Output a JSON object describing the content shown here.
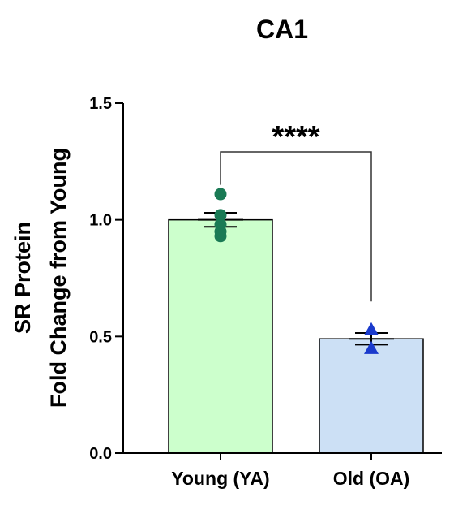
{
  "chart_data": {
    "type": "bar",
    "title": "CA1",
    "ylabel_lines": [
      "SR Protein",
      "Fold Change from Young"
    ],
    "xlabel": "",
    "ylim": [
      0,
      1.5
    ],
    "yticks": [
      0.0,
      0.5,
      1.0,
      1.5
    ],
    "ytick_labels": [
      "0.0",
      "0.5",
      "1.0",
      "1.5"
    ],
    "categories": [
      "Young (YA)",
      "Old (OA)"
    ],
    "values": [
      1.0,
      0.49
    ],
    "sem": [
      0.03,
      0.025
    ],
    "bar_fill_colors": [
      "#ccffcc",
      "#cce0f5"
    ],
    "points": [
      {
        "category": "Young (YA)",
        "marker": "circle",
        "color": "#1a7a55",
        "y": [
          1.11,
          1.02,
          0.98,
          0.95,
          0.93
        ]
      },
      {
        "category": "Old (OA)",
        "marker": "triangle",
        "color": "#1a3acc",
        "y": [
          0.53,
          0.45
        ]
      }
    ],
    "significance": {
      "label": "****",
      "between": [
        "Young (YA)",
        "Old (OA)"
      ]
    },
    "grid": false,
    "legend": "none"
  }
}
